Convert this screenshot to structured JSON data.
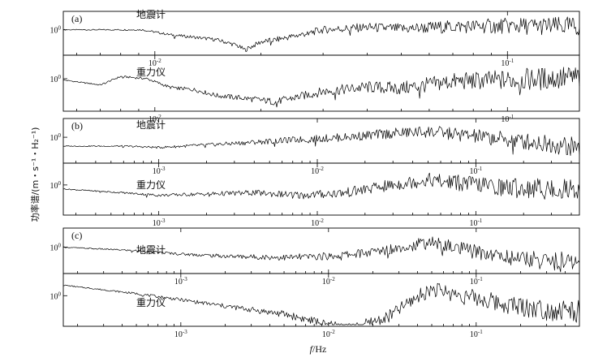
{
  "chart_data": [
    {
      "type": "line",
      "panel": "(a)",
      "xscale": "log",
      "yscale": "log",
      "xlim": [
        0.0055,
        0.16
      ],
      "xticks": [
        {
          "value": 0.01,
          "label": "10-2",
          "base": "10",
          "exp": "-2"
        },
        {
          "value": 0.1,
          "label": "10-1",
          "base": "10",
          "exp": "-1"
        }
      ],
      "yticks": [
        {
          "value": 1,
          "label": "100",
          "base": "10",
          "exp": "0"
        }
      ],
      "series": [
        {
          "name": "地震计",
          "x": [
            0.0055,
            0.0092,
            0.011,
            0.013,
            0.015,
            0.017,
            0.018,
            0.02,
            0.022,
            0.026,
            0.03,
            0.04,
            0.05,
            0.07,
            0.1,
            0.16
          ],
          "y": [
            1.0,
            1.0,
            0.6,
            0.45,
            0.35,
            0.2,
            0.12,
            0.28,
            0.35,
            0.6,
            1.0,
            1.3,
            1.1,
            1.4,
            1.5,
            1.4
          ]
        },
        {
          "name": "重力仪",
          "x": [
            0.0055,
            0.007,
            0.008,
            0.0095,
            0.011,
            0.013,
            0.015,
            0.018,
            0.022,
            0.03,
            0.04,
            0.05,
            0.07,
            0.1,
            0.16
          ],
          "y": [
            0.9,
            0.6,
            1.2,
            1.0,
            0.5,
            0.4,
            0.25,
            0.2,
            0.15,
            0.35,
            0.5,
            0.45,
            0.8,
            0.9,
            1.1
          ]
        }
      ]
    },
    {
      "type": "line",
      "panel": "(b)",
      "xscale": "log",
      "yscale": "log",
      "xlim": [
        0.00025,
        0.45
      ],
      "xticks": [
        {
          "value": 0.001,
          "label": "10-3",
          "base": "10",
          "exp": "-3"
        },
        {
          "value": 0.01,
          "label": "10-2",
          "base": "10",
          "exp": "-2"
        },
        {
          "value": 0.1,
          "label": "10-1",
          "base": "10",
          "exp": "-1"
        }
      ],
      "yticks": [
        {
          "value": 1,
          "label": "100",
          "base": "10",
          "exp": "0"
        }
      ],
      "series": [
        {
          "name": "地震计",
          "x": [
            0.00025,
            0.0006,
            0.001,
            0.002,
            0.004,
            0.008,
            0.015,
            0.03,
            0.05,
            0.08,
            0.15,
            0.3,
            0.45
          ],
          "y": [
            0.4,
            0.4,
            0.35,
            0.45,
            0.6,
            0.8,
            1.0,
            1.5,
            1.8,
            1.3,
            0.8,
            0.5,
            0.35
          ]
        },
        {
          "name": "重力仪",
          "x": [
            0.00025,
            0.0006,
            0.001,
            0.002,
            0.004,
            0.008,
            0.015,
            0.03,
            0.05,
            0.08,
            0.15,
            0.3,
            0.45
          ],
          "y": [
            0.7,
            0.5,
            0.4,
            0.45,
            0.5,
            0.4,
            0.5,
            1.0,
            1.6,
            1.2,
            0.8,
            0.7,
            0.7
          ]
        }
      ]
    },
    {
      "type": "line",
      "panel": "(c)",
      "xscale": "log",
      "yscale": "log",
      "xlim": [
        0.00016,
        0.5
      ],
      "xticks": [
        {
          "value": 0.001,
          "label": "10-3",
          "base": "10",
          "exp": "-3"
        },
        {
          "value": 0.01,
          "label": "10-2",
          "base": "10",
          "exp": "-2"
        },
        {
          "value": 0.1,
          "label": "10-1",
          "base": "10",
          "exp": "-1"
        }
      ],
      "yticks": [
        {
          "value": 1,
          "label": "100",
          "base": "10",
          "exp": "0"
        }
      ],
      "series": [
        {
          "name": "地震计",
          "x": [
            0.00016,
            0.0005,
            0.001,
            0.002,
            0.005,
            0.01,
            0.02,
            0.035,
            0.05,
            0.08,
            0.15,
            0.3,
            0.5
          ],
          "y": [
            1.0,
            0.7,
            0.5,
            0.4,
            0.35,
            0.4,
            0.6,
            1.2,
            1.6,
            0.8,
            0.4,
            0.25,
            0.2
          ]
        },
        {
          "name": "重力仪",
          "x": [
            0.00016,
            0.0005,
            0.001,
            0.002,
            0.005,
            0.01,
            0.015,
            0.025,
            0.04,
            0.05,
            0.08,
            0.15,
            0.3,
            0.5
          ],
          "y": [
            2.5,
            1.2,
            0.7,
            0.4,
            0.2,
            0.08,
            0.06,
            0.15,
            0.9,
            1.8,
            1.0,
            0.5,
            0.3,
            0.25
          ]
        }
      ]
    }
  ],
  "axes": {
    "xlabel_italic": "f",
    "xlabel_unit": "/Hz",
    "ylabel": "功率谱/(m・s⁻¹・H₂⁻¹)"
  }
}
